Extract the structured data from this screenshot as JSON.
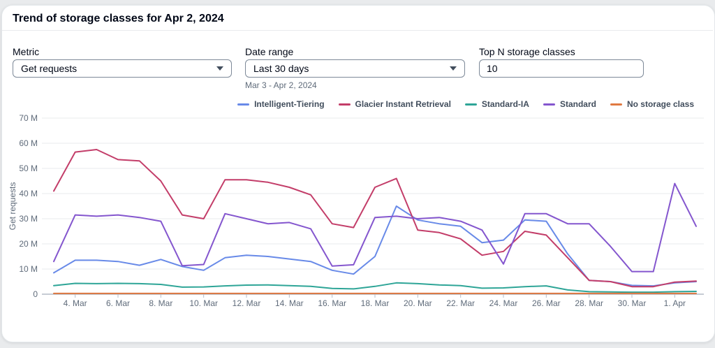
{
  "card": {
    "title": "Trend of storage classes for Apr 2, 2024"
  },
  "filters": {
    "metric": {
      "label": "Metric",
      "value": "Get requests"
    },
    "date_range": {
      "label": "Date range",
      "value": "Last 30 days",
      "helper": "Mar 3 - Apr 2, 2024"
    },
    "top_n": {
      "label": "Top N storage classes",
      "value": "10"
    }
  },
  "chart_data": {
    "type": "line",
    "title": "Trend of storage classes for Apr 2, 2024",
    "xlabel": "",
    "ylabel": "Get requests",
    "value_unit": "millions of requests",
    "ylim": [
      0,
      70
    ],
    "y_tick_step": 10,
    "y_tick_labels": [
      "0",
      "10 M",
      "20 M",
      "30 M",
      "40 M",
      "50 M",
      "60 M",
      "70 M"
    ],
    "grid": true,
    "legend_position": "top-right",
    "x": [
      "3. Mar",
      "4. Mar",
      "5. Mar",
      "6. Mar",
      "7. Mar",
      "8. Mar",
      "9. Mar",
      "10. Mar",
      "11. Mar",
      "12. Mar",
      "13. Mar",
      "14. Mar",
      "15. Mar",
      "16. Mar",
      "17. Mar",
      "18. Mar",
      "19. Mar",
      "20. Mar",
      "21. Mar",
      "22. Mar",
      "23. Mar",
      "24. Mar",
      "25. Mar",
      "26. Mar",
      "27. Mar",
      "28. Mar",
      "29. Mar",
      "30. Mar",
      "31. Mar",
      "1. Apr",
      "2. Apr"
    ],
    "x_ticks": [
      {
        "index": 1,
        "label": "4. Mar"
      },
      {
        "index": 3,
        "label": "6. Mar"
      },
      {
        "index": 5,
        "label": "8. Mar"
      },
      {
        "index": 7,
        "label": "10. Mar"
      },
      {
        "index": 9,
        "label": "12. Mar"
      },
      {
        "index": 11,
        "label": "14. Mar"
      },
      {
        "index": 13,
        "label": "16. Mar"
      },
      {
        "index": 15,
        "label": "18. Mar"
      },
      {
        "index": 17,
        "label": "20. Mar"
      },
      {
        "index": 19,
        "label": "22. Mar"
      },
      {
        "index": 21,
        "label": "24. Mar"
      },
      {
        "index": 23,
        "label": "26. Mar"
      },
      {
        "index": 25,
        "label": "28. Mar"
      },
      {
        "index": 27,
        "label": "30. Mar"
      },
      {
        "index": 29,
        "label": "1. Apr"
      }
    ],
    "series": [
      {
        "name": "Intelligent-Tiering",
        "color": "#688ae8",
        "values": [
          8.5,
          13.5,
          13.5,
          13,
          11.5,
          13.8,
          11,
          9.5,
          14.5,
          15.5,
          15,
          14,
          13,
          9.5,
          8,
          15,
          35,
          29.5,
          28,
          27,
          20.5,
          21.5,
          29.5,
          29,
          16,
          5.5,
          5,
          3.5,
          3.3,
          4.5,
          5
        ]
      },
      {
        "name": "Glacier Instant Retrieval",
        "color": "#c33d69",
        "values": [
          41,
          56.5,
          57.5,
          53.5,
          53,
          45,
          31.5,
          30,
          45.5,
          45.5,
          44.5,
          42.5,
          39.5,
          28,
          26.5,
          42.5,
          46,
          25.5,
          24.5,
          22,
          15.5,
          17,
          25,
          23.5,
          14.5,
          5.5,
          5,
          3,
          3,
          4.8,
          5.2
        ]
      },
      {
        "name": "Standard-IA",
        "color": "#2ea597",
        "values": [
          3.4,
          4.3,
          4.2,
          4.3,
          4.2,
          3.9,
          2.8,
          2.9,
          3.3,
          3.6,
          3.7,
          3.4,
          3.1,
          2.3,
          2.1,
          3.1,
          4.5,
          4.2,
          3.7,
          3.4,
          2.4,
          2.5,
          3,
          3.3,
          1.7,
          1,
          0.9,
          0.8,
          0.8,
          1,
          1.1
        ]
      },
      {
        "name": "Standard",
        "color": "#8456ce",
        "values": [
          13,
          31.5,
          31,
          31.5,
          30.5,
          29,
          11.3,
          11.8,
          32,
          30,
          28,
          28.5,
          26,
          11.2,
          11.7,
          30.5,
          31,
          30,
          30.5,
          29,
          25.5,
          12,
          32,
          32,
          28,
          28,
          19,
          9,
          9,
          44,
          27
        ]
      },
      {
        "name": "No storage class",
        "color": "#e07941",
        "values": [
          0.3,
          0.3,
          0.3,
          0.3,
          0.3,
          0.3,
          0.3,
          0.3,
          0.3,
          0.3,
          0.3,
          0.3,
          0.3,
          0.3,
          0.3,
          0.3,
          0.3,
          0.3,
          0.3,
          0.3,
          0.3,
          0.3,
          0.3,
          0.3,
          0.3,
          0.3,
          0.3,
          0.3,
          0.3,
          0.3,
          0.3
        ]
      }
    ]
  }
}
